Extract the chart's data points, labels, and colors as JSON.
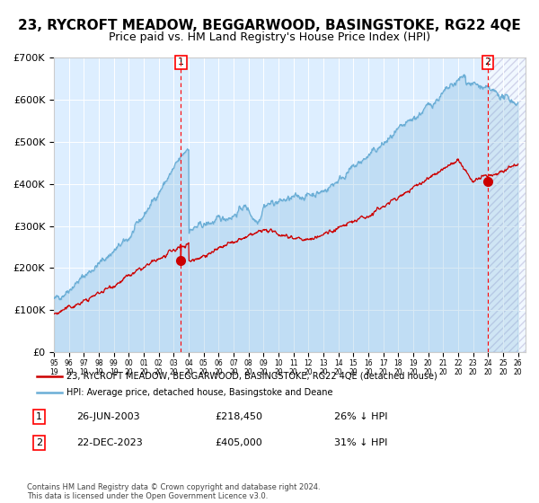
{
  "title": "23, RYCROFT MEADOW, BEGGARWOOD, BASINGSTOKE, RG22 4QE",
  "subtitle": "Price paid vs. HM Land Registry's House Price Index (HPI)",
  "title_fontsize": 11,
  "subtitle_fontsize": 9,
  "ylim": [
    0,
    700000
  ],
  "yticks": [
    0,
    100000,
    200000,
    300000,
    400000,
    500000,
    600000,
    700000
  ],
  "ytick_labels": [
    "£0",
    "£100K",
    "£200K",
    "£300K",
    "£400K",
    "£500K",
    "£600K",
    "£700K"
  ],
  "xstart": 1995.0,
  "xend": 2026.5,
  "hpi_color": "#6baed6",
  "price_color": "#cc0000",
  "bg_color": "#ddeeff",
  "marker1_date": 2003.484,
  "marker1_price": 218450,
  "marker1_label": "1",
  "marker2_date": 2023.978,
  "marker2_price": 405000,
  "marker2_label": "2",
  "legend_line1": "23, RYCROFT MEADOW, BEGGARWOOD, BASINGSTOKE, RG22 4QE (detached house)",
  "legend_line2": "HPI: Average price, detached house, Basingstoke and Deane",
  "table_row1": [
    "1",
    "26-JUN-2003",
    "£218,450",
    "26% ↓ HPI"
  ],
  "table_row2": [
    "2",
    "22-DEC-2023",
    "£405,000",
    "31% ↓ HPI"
  ],
  "footer": "Contains HM Land Registry data © Crown copyright and database right 2024.\nThis data is licensed under the Open Government Licence v3.0.",
  "hatch_color": "#aaaacc"
}
